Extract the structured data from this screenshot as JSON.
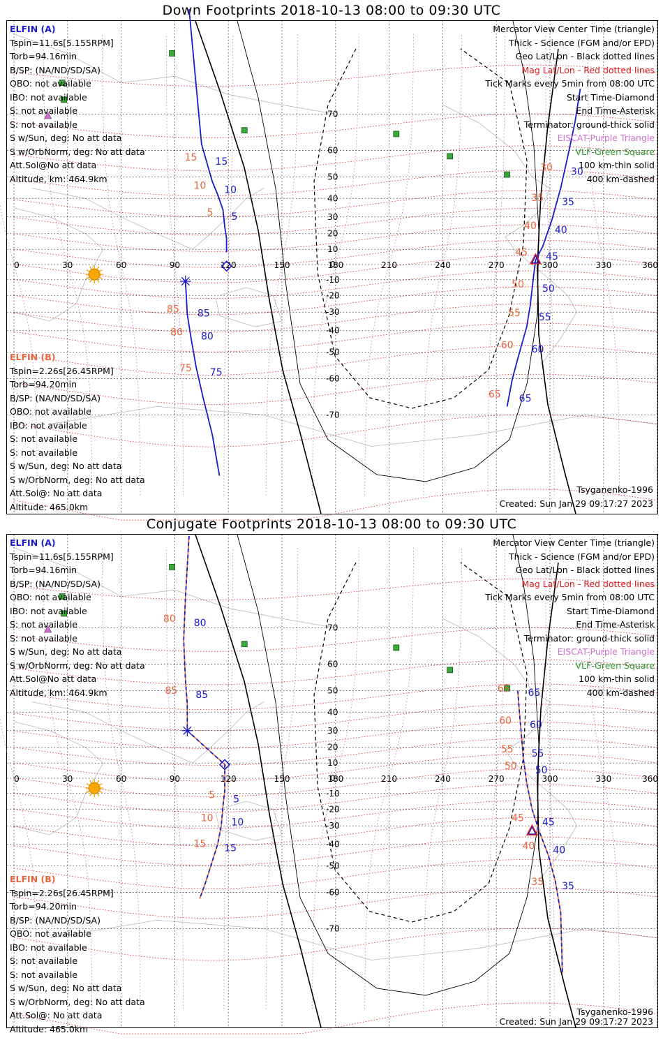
{
  "panels": [
    {
      "title": "Down Footprints 2018-10-13 08:00 to 09:30 UTC",
      "mode": "down",
      "elfin_a": {
        "header": "ELFIN (A)",
        "lines": [
          "Tspin=11.6s[5.155RPM]",
          "Torb=94.16min",
          "B/SP: (NA/ND/SD/SA)",
          "OBO: not available",
          "IBO: not available",
          "S: not available",
          "S: not available",
          "S w/Sun, deg: No att data",
          "S w/OrbNorm, deg: No att data",
          "Att.Sol@No att data",
          "Altitude, km: 464.9km"
        ]
      },
      "elfin_b": {
        "header": "ELFIN (B)",
        "lines": [
          "Tspin=2.26s[26.45RPM]",
          "Torb=94.20min",
          "B/SP: (NA/ND/SD/SA)",
          "OBO: not available",
          "IBO: not available",
          "S: not available",
          "S: not available",
          "S w/Sun, deg: No att data",
          "S w/OrbNorm, deg: No att data",
          "Att.Sol@: No att data",
          "Altitude: 465.0km"
        ]
      },
      "legend": [
        "Mercator View Center Time (triangle)",
        "Thick - Science (FGM and/or EPD)",
        "Geo Lat/Lon - Black dotted lines",
        "Mag Lat/Lon - Red dotted lines",
        "Tick Marks every 5min from 08:00 UTC",
        "Start Time-Diamond",
        "End Time-Asterisk",
        "Terminator: ground-thick solid",
        "EISCAT-Purple Triangle",
        "VLF-Green Square",
        "100 km-thin solid",
        "400 km-dashed"
      ],
      "model": "Tsyganenko-1996",
      "created": "Created: Sun Jan 29 09:17:27 2023"
    },
    {
      "title": "Conjugate Footprints 2018-10-13 08:00 to 09:30 UTC",
      "mode": "conj",
      "elfin_a": {
        "header": "ELFIN (A)",
        "lines": [
          "Tspin=11.6s[5.155RPM]",
          "Torb=94.16min",
          "B/SP: (NA/ND/SD/SA)",
          "OBO: not available",
          "IBO: not available",
          "S: not available",
          "S: not available",
          "S w/Sun, deg: No att data",
          "S w/OrbNorm, deg: No att data",
          "Att.Sol@No att data",
          "Altitude, km: 464.9km"
        ]
      },
      "elfin_b": {
        "header": "ELFIN (B)",
        "lines": [
          "Tspin=2.26s[26.45RPM]",
          "Torb=94.20min",
          "B/SP: (NA/ND/SD/SA)",
          "OBO: not available",
          "IBO: not available",
          "S: not available",
          "S: not available",
          "S w/Sun, deg: No att data",
          "S w/OrbNorm, deg: No att data",
          "Att.Sol@: No att data",
          "Altitude: 465.0km"
        ]
      },
      "legend": [
        "Mercator View Center Time (triangle)",
        "Thick - Science (FGM and/or EPD)",
        "Geo Lat/Lon - Black dotted lines",
        "Mag Lat/Lon - Red dotted lines",
        "Tick Marks every 5min from 08:00 UTC",
        "Start Time-Diamond",
        "End Time-Asterisk",
        "Terminator: ground-thick solid",
        "EISCAT-Purple Triangle",
        "VLF-Green Square",
        "100 km-thin solid",
        "400 km-dashed"
      ],
      "model": "Tsyganenko-1996",
      "created": "Created: Sun Jan 29 09:17:27 2023"
    }
  ],
  "axis": {
    "lon_labels": [
      "0",
      "30",
      "60",
      "90",
      "120",
      "150",
      "180",
      "210",
      "240",
      "270",
      "300",
      "330",
      "360"
    ],
    "lat_labels": [
      "70",
      "60",
      "50",
      "40",
      "30",
      "20",
      "10",
      "0",
      "-10",
      "-20",
      "-30",
      "-40",
      "-50",
      "-60",
      "-70"
    ]
  },
  "vlf_sites": [
    {
      "lon": 88.5,
      "lat": 80
    },
    {
      "lon": 27,
      "lat": 76
    },
    {
      "lon": 28,
      "lat": 73
    },
    {
      "lon": 129,
      "lat": 66
    },
    {
      "lon": 214,
      "lat": 65
    },
    {
      "lon": 244,
      "lat": 58
    },
    {
      "lon": 276,
      "lat": 51
    }
  ],
  "eiscat_sites": [
    {
      "lon": 19,
      "lat": 69.6
    }
  ],
  "sun": {
    "lon": 45,
    "lat": -6.5
  },
  "tracks": {
    "down": {
      "elfin_a_path": [
        [
          98,
          88
        ],
        [
          105,
          62
        ],
        [
          111,
          48
        ],
        [
          114,
          42
        ],
        [
          117,
          34
        ],
        [
          118,
          24
        ],
        [
          119,
          17
        ],
        [
          119,
          8
        ],
        [
          276,
          -68
        ],
        [
          279,
          -60
        ],
        [
          283,
          -50
        ],
        [
          287,
          -38
        ],
        [
          289,
          -26
        ],
        [
          290,
          -16
        ],
        [
          291,
          -6
        ],
        [
          292,
          3
        ],
        [
          296,
          12
        ],
        [
          301,
          28
        ],
        [
          306,
          45
        ],
        [
          310,
          58
        ],
        [
          314,
          68
        ],
        [
          317,
          75
        ]
      ],
      "elfin_b_path": [
        [
          115,
          -80
        ],
        [
          111,
          -74
        ],
        [
          106,
          -66
        ],
        [
          102,
          -56
        ],
        [
          99,
          -43
        ],
        [
          97,
          -31
        ],
        [
          96,
          -11
        ]
      ],
      "a_ticks": [
        {
          "label": "15",
          "lon": 108,
          "lat": 56
        },
        {
          "label": "10",
          "lon": 113,
          "lat": 44
        },
        {
          "label": "5",
          "lon": 117,
          "lat": 30
        },
        {
          "label": "45",
          "lon": 293,
          "lat": 5
        },
        {
          "label": "40",
          "lon": 298,
          "lat": 22
        },
        {
          "label": "35",
          "lon": 302,
          "lat": 38
        },
        {
          "label": "30",
          "lon": 307,
          "lat": 52
        },
        {
          "label": "50",
          "lon": 291,
          "lat": -16
        },
        {
          "label": "55",
          "lon": 289,
          "lat": -33
        },
        {
          "label": "60",
          "lon": 285,
          "lat": -49
        },
        {
          "label": "65",
          "lon": 278,
          "lat": -66
        }
      ],
      "b_ticks": [
        {
          "label": "85",
          "lon": 98,
          "lat": -31
        },
        {
          "label": "80",
          "lon": 100,
          "lat": -43
        },
        {
          "label": "75",
          "lon": 105,
          "lat": -58
        }
      ],
      "start": {
        "lon": 119,
        "lat": -1
      },
      "end": {
        "lon": 96,
        "lat": -11
      },
      "center": {
        "lon": 292,
        "lat": 3
      }
    },
    "conj": {
      "elfin_a_path": [
        [
          98,
          83
        ],
        [
          96,
          76
        ],
        [
          95,
          67
        ],
        [
          96,
          54
        ],
        [
          97,
          44
        ],
        [
          97,
          30
        ],
        [
          118,
          9
        ],
        [
          118,
          -8
        ],
        [
          117,
          -18
        ],
        [
          116,
          -30
        ],
        [
          114,
          -40
        ],
        [
          111,
          -48
        ],
        [
          107,
          -57
        ],
        [
          104,
          -62
        ],
        [
          282,
          50
        ],
        [
          283,
          39
        ],
        [
          284,
          28
        ],
        [
          285,
          14
        ],
        [
          287,
          -3
        ],
        [
          290,
          -20
        ],
        [
          294,
          -33
        ],
        [
          299,
          -45
        ],
        [
          303,
          -56
        ],
        [
          306,
          -66
        ],
        [
          307,
          -78
        ]
      ],
      "a_ticks": [
        {
          "label": "80",
          "lon": 96,
          "lat": 71
        },
        {
          "label": "85",
          "lon": 97,
          "lat": 48
        },
        {
          "label": "5",
          "lon": 118,
          "lat": -14
        },
        {
          "label": "10",
          "lon": 117,
          "lat": -28
        },
        {
          "label": "15",
          "lon": 113,
          "lat": -42
        },
        {
          "label": "65",
          "lon": 283,
          "lat": 49
        },
        {
          "label": "60",
          "lon": 284,
          "lat": 33
        },
        {
          "label": "55",
          "lon": 285,
          "lat": 16
        },
        {
          "label": "50",
          "lon": 287,
          "lat": 5
        },
        {
          "label": "45",
          "lon": 291,
          "lat": -28
        },
        {
          "label": "40",
          "lon": 297,
          "lat": -43
        },
        {
          "label": "35",
          "lon": 302,
          "lat": -58
        }
      ],
      "start": {
        "lon": 118,
        "lat": 9
      },
      "end": {
        "lon": 97,
        "lat": 30
      },
      "center": {
        "lon": 290,
        "lat": -33
      }
    }
  }
}
